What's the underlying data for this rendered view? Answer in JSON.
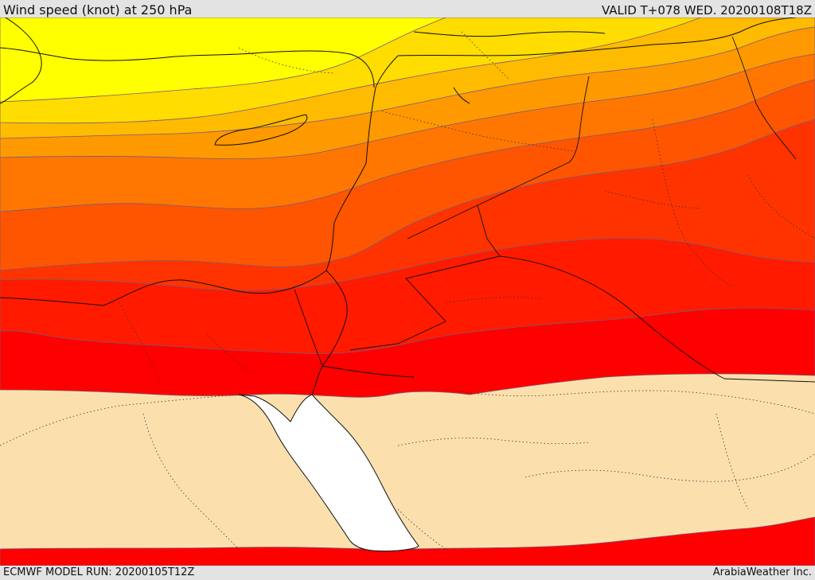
{
  "header": {
    "title": "Wind speed (knot) at 250 hPa",
    "valid": "VALID T+078 WED. 20200108T18Z"
  },
  "footer": {
    "model_run": "ECMWF MODEL RUN: 20200105T12Z",
    "credit": "ArabiaWeather Inc."
  },
  "map": {
    "field": "wind speed",
    "level": "250 hPa",
    "colors": {
      "band_1": "#ffff00",
      "band_2": "#ffdd00",
      "band_3": "#ffbb00",
      "band_4": "#ff9900",
      "band_5": "#ff7700",
      "band_6": "#ff5500",
      "band_7": "#ff3300",
      "band_8": "#ff1a00",
      "band_9": "#ff0000",
      "calm": "#fbe0ae",
      "sea": "#ffffff"
    }
  }
}
